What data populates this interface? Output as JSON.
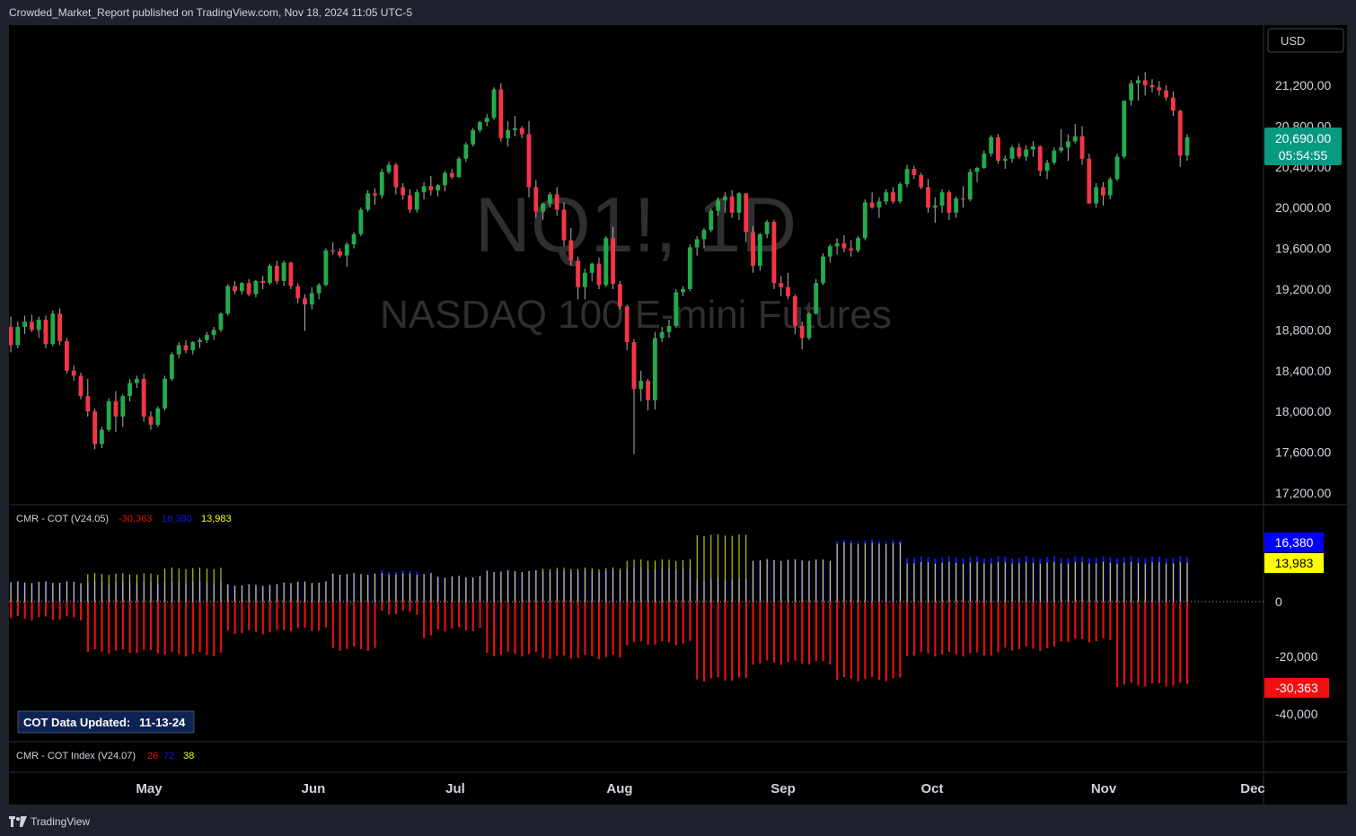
{
  "header": {
    "published_text": "Crowded_Market_Report published on TradingView.com, Nov 18, 2024 11:05 UTC-5"
  },
  "watermark": {
    "symbol": "NQ1!, 1D",
    "description": "NASDAQ 100 E-mini Futures"
  },
  "currency_button": "USD",
  "price_badge": {
    "price": "20,690.00",
    "countdown": "05:54:55",
    "color": "#089981"
  },
  "indicator1": {
    "title": "CMR - COT (V24.05)",
    "v_red": "-30,363",
    "v_blue": "16,380",
    "v_yellow": "13,983",
    "axis_labels": [
      "0",
      "-20,000",
      "-40,000"
    ],
    "badges": {
      "blue": "16,380",
      "yellow": "13,983",
      "red": "-30,363"
    },
    "updated_label": "COT Data Updated:",
    "updated_date": "11-13-24"
  },
  "indicator2": {
    "title": "CMR - COT Index (V24.07)",
    "v_red": "26",
    "v_blue": "72",
    "v_yellow": "38"
  },
  "footer": {
    "brand": "TradingView"
  },
  "colors": {
    "up": "#22ab4a",
    "down": "#f23645",
    "blue": "#1414e6",
    "yellow": "#ffff00",
    "red": "#e01010",
    "background": "#000000",
    "frame": "#1e222d"
  },
  "chart_data": [
    {
      "type": "candlestick",
      "symbol": "NQ1!",
      "interval": "1D",
      "y_axis_labels": [
        "21,200.00",
        "20,800.00",
        "20,400.00",
        "20,000.00",
        "19,600.00",
        "19,200.00",
        "18,800.00",
        "18,400.00",
        "18,000.00",
        "17,600.00",
        "17,200.00"
      ],
      "ylim": [
        17100,
        21500
      ],
      "x_axis_labels": [
        "May",
        "Jun",
        "Jul",
        "Aug",
        "Sep",
        "Oct",
        "Nov",
        "Dec"
      ],
      "bars_approx": [
        [
          18830,
          18930,
          18580,
          18650
        ],
        [
          18650,
          18880,
          18620,
          18830
        ],
        [
          18830,
          18940,
          18760,
          18880
        ],
        [
          18880,
          18950,
          18780,
          18800
        ],
        [
          18800,
          18930,
          18720,
          18900
        ],
        [
          18900,
          18940,
          18620,
          18660
        ],
        [
          18660,
          18990,
          18640,
          18960
        ],
        [
          18960,
          19010,
          18650,
          18690
        ],
        [
          18690,
          18720,
          18370,
          18400
        ],
        [
          18400,
          18450,
          18300,
          18350
        ],
        [
          18350,
          18380,
          18120,
          18150
        ],
        [
          18150,
          18320,
          17950,
          18000
        ],
        [
          18000,
          18030,
          17630,
          17680
        ],
        [
          17680,
          17850,
          17640,
          17820
        ],
        [
          17820,
          18130,
          17800,
          18100
        ],
        [
          18100,
          18200,
          17800,
          17950
        ],
        [
          17950,
          18170,
          17850,
          18150
        ],
        [
          18150,
          18320,
          18100,
          18280
        ],
        [
          18280,
          18350,
          18230,
          18320
        ],
        [
          18320,
          18370,
          17900,
          17950
        ],
        [
          17950,
          18000,
          17820,
          17870
        ],
        [
          17870,
          18050,
          17850,
          18030
        ],
        [
          18030,
          18350,
          18010,
          18320
        ],
        [
          18320,
          18580,
          18300,
          18560
        ],
        [
          18560,
          18680,
          18520,
          18650
        ],
        [
          18650,
          18700,
          18570,
          18600
        ],
        [
          18600,
          18690,
          18560,
          18680
        ],
        [
          18680,
          18720,
          18620,
          18700
        ],
        [
          18700,
          18780,
          18670,
          18750
        ],
        [
          18750,
          18830,
          18700,
          18800
        ],
        [
          18800,
          18970,
          18780,
          18960
        ],
        [
          18960,
          19250,
          18940,
          19230
        ],
        [
          19230,
          19280,
          19150,
          19180
        ],
        [
          19180,
          19270,
          19150,
          19260
        ],
        [
          19260,
          19300,
          19130,
          19150
        ],
        [
          19150,
          19290,
          19120,
          19280
        ],
        [
          19280,
          19330,
          19200,
          19260
        ],
        [
          19260,
          19450,
          19240,
          19430
        ],
        [
          19430,
          19480,
          19250,
          19280
        ],
        [
          19280,
          19480,
          19230,
          19460
        ],
        [
          19460,
          19470,
          19200,
          19230
        ],
        [
          19230,
          19260,
          19060,
          19110
        ],
        [
          19110,
          19150,
          18790,
          19050
        ],
        [
          19050,
          19220,
          19000,
          19160
        ],
        [
          19160,
          19260,
          19100,
          19240
        ],
        [
          19240,
          19600,
          19230,
          19580
        ],
        [
          19580,
          19660,
          19540,
          19570
        ],
        [
          19570,
          19600,
          19510,
          19530
        ],
        [
          19530,
          19660,
          19420,
          19640
        ],
        [
          19640,
          19760,
          19600,
          19740
        ],
        [
          19740,
          20000,
          19720,
          19980
        ],
        [
          19980,
          20170,
          19960,
          20140
        ],
        [
          20140,
          20190,
          20030,
          20120
        ],
        [
          20120,
          20380,
          20090,
          20350
        ],
        [
          20350,
          20450,
          20330,
          20420
        ],
        [
          20420,
          20440,
          20130,
          20200
        ],
        [
          20200,
          20240,
          20080,
          20120
        ],
        [
          20120,
          20180,
          19950,
          19980
        ],
        [
          19980,
          20180,
          19950,
          20150
        ],
        [
          20150,
          20250,
          20080,
          20210
        ],
        [
          20210,
          20310,
          20120,
          20170
        ],
        [
          20170,
          20230,
          20110,
          20220
        ],
        [
          20220,
          20360,
          20160,
          20340
        ],
        [
          20340,
          20380,
          20280,
          20300
        ],
        [
          20300,
          20500,
          20290,
          20480
        ],
        [
          20480,
          20640,
          20450,
          20620
        ],
        [
          20620,
          20780,
          20600,
          20760
        ],
        [
          20760,
          20850,
          20740,
          20840
        ],
        [
          20840,
          20920,
          20800,
          20880
        ],
        [
          20880,
          21180,
          20860,
          21160
        ],
        [
          21160,
          21220,
          20650,
          20680
        ],
        [
          20680,
          20850,
          20600,
          20760
        ],
        [
          20760,
          20900,
          20700,
          20780
        ],
        [
          20780,
          20800,
          20680,
          20720
        ],
        [
          20720,
          20850,
          20100,
          20200
        ],
        [
          20200,
          20270,
          19900,
          19960
        ],
        [
          19960,
          20050,
          19880,
          20040
        ],
        [
          20040,
          20150,
          20000,
          20130
        ],
        [
          20130,
          20200,
          19920,
          19980
        ],
        [
          19980,
          20050,
          19620,
          19680
        ],
        [
          19680,
          19800,
          19430,
          19480
        ],
        [
          19480,
          19520,
          19100,
          19220
        ],
        [
          19220,
          19400,
          19100,
          19360
        ],
        [
          19360,
          19460,
          19280,
          19450
        ],
        [
          19450,
          19510,
          19200,
          19240
        ],
        [
          19240,
          19720,
          19220,
          19700
        ],
        [
          19700,
          19810,
          19200,
          19250
        ],
        [
          19250,
          19280,
          19000,
          19030
        ],
        [
          19030,
          19050,
          18600,
          18680
        ],
        [
          18680,
          18710,
          17580,
          18220
        ],
        [
          18220,
          18400,
          18100,
          18300
        ],
        [
          18300,
          18320,
          18010,
          18110
        ],
        [
          18110,
          18780,
          18020,
          18720
        ],
        [
          18720,
          18830,
          18680,
          18780
        ],
        [
          18780,
          18900,
          18720,
          18840
        ],
        [
          18840,
          19200,
          18820,
          19170
        ],
        [
          19170,
          19230,
          19130,
          19200
        ],
        [
          19200,
          19640,
          19180,
          19610
        ],
        [
          19610,
          19720,
          19530,
          19690
        ],
        [
          19690,
          19800,
          19600,
          19780
        ],
        [
          19780,
          19990,
          19760,
          19970
        ],
        [
          19970,
          20100,
          19920,
          20070
        ],
        [
          20070,
          20150,
          19950,
          20110
        ],
        [
          20110,
          20170,
          19900,
          19950
        ],
        [
          19950,
          20150,
          19880,
          20140
        ],
        [
          20140,
          20130,
          19660,
          19760
        ],
        [
          19760,
          19820,
          19360,
          19430
        ],
        [
          19430,
          19750,
          19380,
          19740
        ],
        [
          19740,
          19880,
          19700,
          19860
        ],
        [
          19860,
          19880,
          19200,
          19260
        ],
        [
          19260,
          19330,
          19130,
          19220
        ],
        [
          19220,
          19360,
          19100,
          19130
        ],
        [
          19130,
          19150,
          18760,
          18840
        ],
        [
          18840,
          18880,
          18610,
          18720
        ],
        [
          18720,
          18970,
          18700,
          18960
        ],
        [
          18960,
          19300,
          18950,
          19260
        ],
        [
          19260,
          19550,
          19240,
          19520
        ],
        [
          19520,
          19640,
          19460,
          19620
        ],
        [
          19620,
          19700,
          19540,
          19650
        ],
        [
          19650,
          19730,
          19560,
          19600
        ],
        [
          19600,
          19680,
          19520,
          19580
        ],
        [
          19580,
          19720,
          19560,
          19700
        ],
        [
          19700,
          20080,
          19680,
          20050
        ],
        [
          20050,
          20150,
          19990,
          20000
        ],
        [
          20000,
          20100,
          19900,
          20060
        ],
        [
          20060,
          20180,
          20030,
          20150
        ],
        [
          20150,
          20200,
          20040,
          20060
        ],
        [
          20060,
          20250,
          20040,
          20230
        ],
        [
          20230,
          20420,
          20200,
          20380
        ],
        [
          20380,
          20410,
          20280,
          20320
        ],
        [
          20320,
          20340,
          20180,
          20200
        ],
        [
          20200,
          20280,
          19950,
          20000
        ],
        [
          20000,
          20100,
          19850,
          20020
        ],
        [
          20020,
          20180,
          19950,
          20150
        ],
        [
          20150,
          20170,
          19880,
          19950
        ],
        [
          19950,
          20110,
          19900,
          20090
        ],
        [
          20090,
          20210,
          20000,
          20080
        ],
        [
          20080,
          20380,
          20060,
          20350
        ],
        [
          20350,
          20400,
          20250,
          20390
        ],
        [
          20390,
          20560,
          20380,
          20530
        ],
        [
          20530,
          20710,
          20500,
          20690
        ],
        [
          20690,
          20720,
          20430,
          20460
        ],
        [
          20460,
          20510,
          20380,
          20480
        ],
        [
          20480,
          20610,
          20440,
          20590
        ],
        [
          20590,
          20630,
          20480,
          20500
        ],
        [
          20500,
          20610,
          20460,
          20570
        ],
        [
          20570,
          20650,
          20500,
          20600
        ],
        [
          20600,
          20610,
          20310,
          20360
        ],
        [
          20360,
          20470,
          20280,
          20440
        ],
        [
          20440,
          20590,
          20420,
          20560
        ],
        [
          20560,
          20770,
          20540,
          20590
        ],
        [
          20590,
          20720,
          20460,
          20650
        ],
        [
          20650,
          20820,
          20630,
          20700
        ],
        [
          20700,
          20800,
          20420,
          20480
        ],
        [
          20480,
          20530,
          20040,
          20040
        ],
        [
          20040,
          20240,
          20000,
          20200
        ],
        [
          20200,
          20250,
          20020,
          20120
        ],
        [
          20120,
          20300,
          20080,
          20280
        ],
        [
          20280,
          20530,
          20260,
          20500
        ],
        [
          20500,
          20820,
          20480,
          21050
        ],
        [
          21050,
          21250,
          21000,
          21220
        ],
        [
          21220,
          21290,
          21050,
          21250
        ],
        [
          21250,
          21330,
          21100,
          21200
        ],
        [
          21200,
          21260,
          21130,
          21180
        ],
        [
          21180,
          21240,
          21100,
          21150
        ],
        [
          21150,
          21200,
          21050,
          21080
        ],
        [
          21080,
          21140,
          20900,
          20950
        ],
        [
          20950,
          20960,
          20400,
          20510
        ],
        [
          20510,
          20720,
          20460,
          20690
        ]
      ]
    },
    {
      "type": "bar",
      "indicator": "CMR - COT (V24.05)",
      "ylim": [
        -45000,
        25000
      ],
      "series": [
        {
          "name": "-30,363",
          "color": "red",
          "last_value": -30363
        },
        {
          "name": "16,380",
          "color": "blue",
          "last_value": 16380
        },
        {
          "name": "13,983",
          "color": "yellow",
          "last_value": 13983
        }
      ]
    }
  ]
}
